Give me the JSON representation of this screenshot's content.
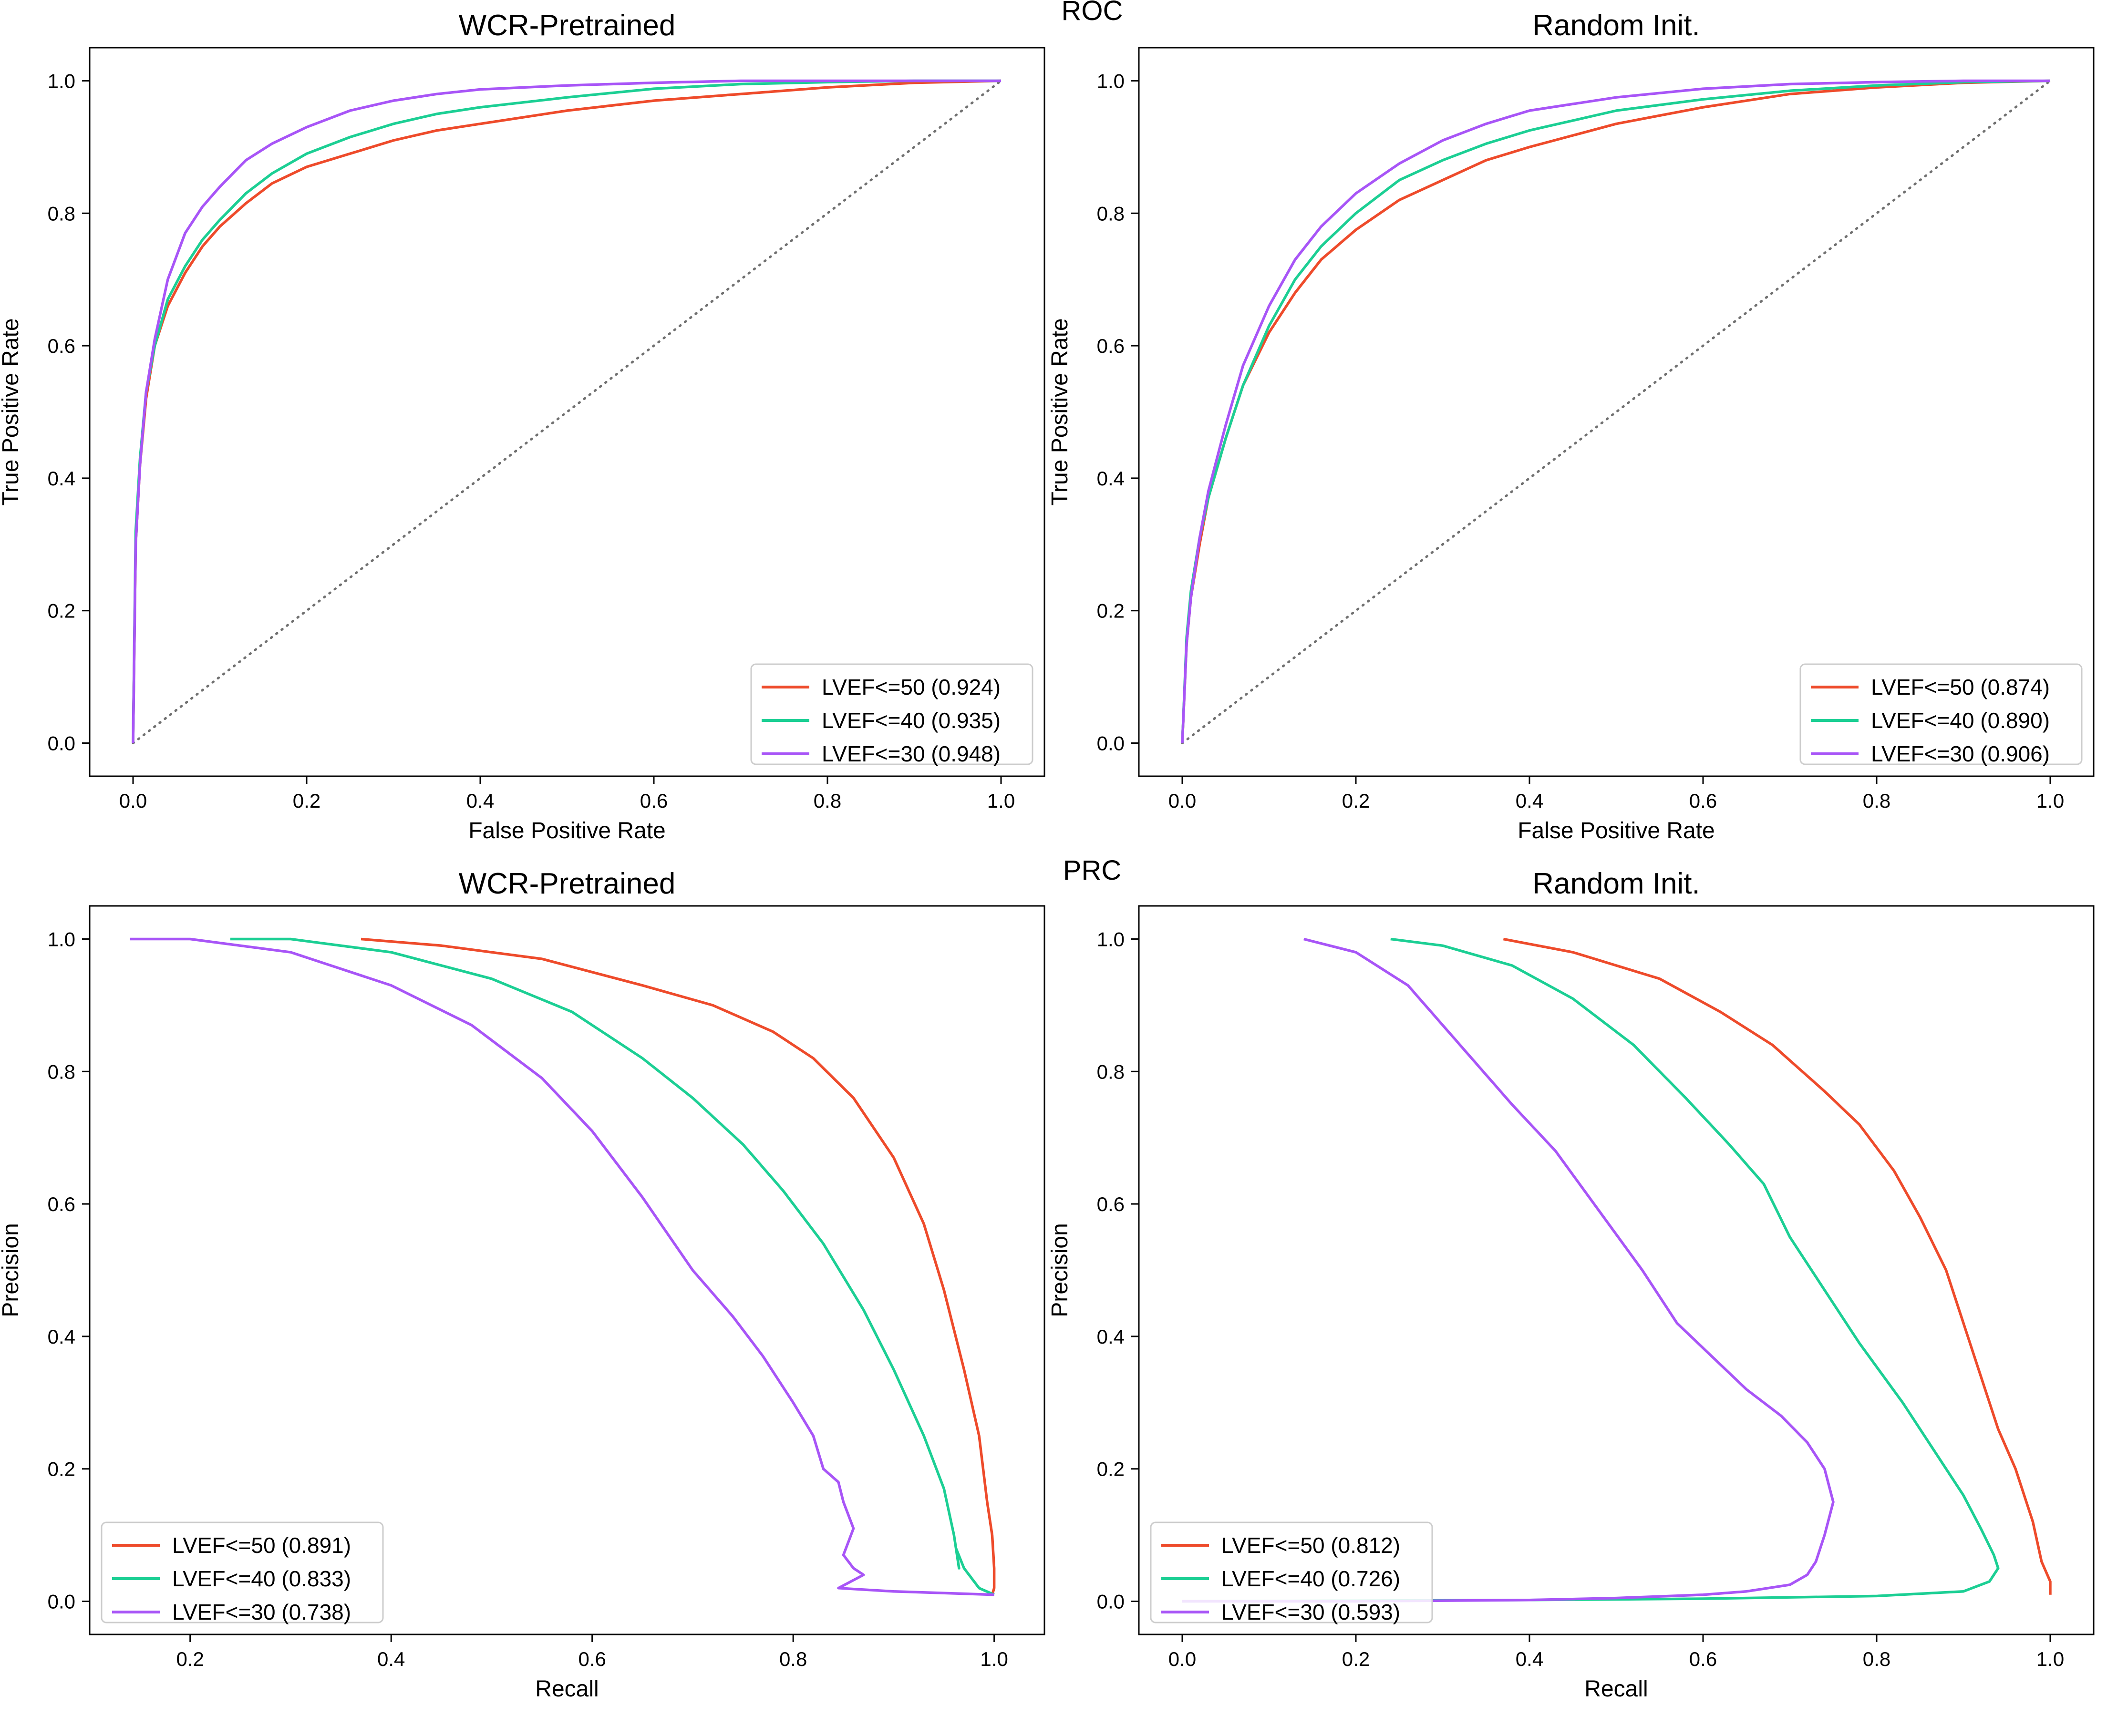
{
  "section_titles": [
    "ROC",
    "PRC"
  ],
  "colors": {
    "lvef50": "#ee4b2b",
    "lvef40": "#1ccf94",
    "lvef30": "#a855f7",
    "diagonal": "#707070",
    "axes": "#000000"
  },
  "chart_data": [
    {
      "type": "line",
      "section": "ROC",
      "title": "WCR-Pretrained",
      "xlabel": "False Positive Rate",
      "ylabel": "True Positive Rate",
      "xlim": [
        -0.05,
        1.05
      ],
      "ylim": [
        -0.05,
        1.05
      ],
      "xticks": [
        0.0,
        0.2,
        0.4,
        0.6,
        0.8,
        1.0
      ],
      "yticks": [
        0.0,
        0.2,
        0.4,
        0.6,
        0.8,
        1.0
      ],
      "xtick_labels": [
        "0.0",
        "0.2",
        "0.4",
        "0.6",
        "0.8",
        "1.0"
      ],
      "ytick_labels": [
        "0.0",
        "0.2",
        "0.4",
        "0.6",
        "0.8",
        "1.0"
      ],
      "legend_position": "lower-right",
      "diagonal": true,
      "series": [
        {
          "name": "LVEF<=50 (0.924)",
          "color": "#ee4b2b",
          "x": [
            0,
            0.003,
            0.008,
            0.015,
            0.025,
            0.04,
            0.06,
            0.08,
            0.1,
            0.13,
            0.16,
            0.2,
            0.25,
            0.3,
            0.35,
            0.4,
            0.5,
            0.6,
            0.7,
            0.8,
            0.9,
            1.0
          ],
          "y": [
            0,
            0.3,
            0.42,
            0.52,
            0.6,
            0.66,
            0.71,
            0.75,
            0.78,
            0.815,
            0.845,
            0.87,
            0.89,
            0.91,
            0.925,
            0.935,
            0.955,
            0.97,
            0.98,
            0.99,
            0.997,
            1.0
          ]
        },
        {
          "name": "LVEF<=40 (0.935)",
          "color": "#1ccf94",
          "x": [
            0,
            0.003,
            0.008,
            0.015,
            0.025,
            0.04,
            0.06,
            0.08,
            0.1,
            0.13,
            0.16,
            0.2,
            0.25,
            0.3,
            0.35,
            0.4,
            0.5,
            0.6,
            0.7,
            0.8,
            0.9,
            1.0
          ],
          "y": [
            0,
            0.32,
            0.43,
            0.53,
            0.6,
            0.67,
            0.72,
            0.76,
            0.79,
            0.83,
            0.86,
            0.89,
            0.915,
            0.935,
            0.95,
            0.96,
            0.975,
            0.988,
            0.995,
            0.998,
            1.0,
            1.0
          ]
        },
        {
          "name": "LVEF<=30 (0.948)",
          "color": "#a855f7",
          "x": [
            0,
            0.003,
            0.008,
            0.015,
            0.025,
            0.04,
            0.06,
            0.08,
            0.1,
            0.13,
            0.16,
            0.2,
            0.25,
            0.3,
            0.35,
            0.4,
            0.5,
            0.6,
            0.7,
            0.8,
            0.9,
            1.0
          ],
          "y": [
            0,
            0.3,
            0.42,
            0.53,
            0.61,
            0.7,
            0.77,
            0.81,
            0.84,
            0.88,
            0.905,
            0.93,
            0.955,
            0.97,
            0.98,
            0.987,
            0.993,
            0.997,
            1.0,
            1.0,
            1.0,
            1.0
          ]
        }
      ]
    },
    {
      "type": "line",
      "section": "ROC",
      "title": "Random Init.",
      "xlabel": "False Positive Rate",
      "ylabel": "True Positive Rate",
      "xlim": [
        -0.05,
        1.05
      ],
      "ylim": [
        -0.05,
        1.05
      ],
      "xticks": [
        0.0,
        0.2,
        0.4,
        0.6,
        0.8,
        1.0
      ],
      "yticks": [
        0.0,
        0.2,
        0.4,
        0.6,
        0.8,
        1.0
      ],
      "xtick_labels": [
        "0.0",
        "0.2",
        "0.4",
        "0.6",
        "0.8",
        "1.0"
      ],
      "ytick_labels": [
        "0.0",
        "0.2",
        "0.4",
        "0.6",
        "0.8",
        "1.0"
      ],
      "legend_position": "lower-right",
      "diagonal": true,
      "series": [
        {
          "name": "LVEF<=50 (0.874)",
          "color": "#ee4b2b",
          "x": [
            0,
            0.005,
            0.01,
            0.02,
            0.03,
            0.05,
            0.07,
            0.1,
            0.13,
            0.16,
            0.2,
            0.25,
            0.3,
            0.35,
            0.4,
            0.5,
            0.6,
            0.7,
            0.8,
            0.9,
            1.0
          ],
          "y": [
            0,
            0.15,
            0.22,
            0.3,
            0.37,
            0.46,
            0.54,
            0.62,
            0.68,
            0.73,
            0.775,
            0.82,
            0.85,
            0.88,
            0.9,
            0.935,
            0.96,
            0.98,
            0.99,
            0.997,
            1.0
          ]
        },
        {
          "name": "LVEF<=40 (0.890)",
          "color": "#1ccf94",
          "x": [
            0,
            0.005,
            0.01,
            0.02,
            0.03,
            0.05,
            0.07,
            0.1,
            0.13,
            0.16,
            0.2,
            0.25,
            0.3,
            0.35,
            0.4,
            0.5,
            0.6,
            0.7,
            0.8,
            0.9,
            1.0
          ],
          "y": [
            0,
            0.16,
            0.23,
            0.31,
            0.37,
            0.46,
            0.54,
            0.63,
            0.7,
            0.75,
            0.8,
            0.85,
            0.88,
            0.905,
            0.925,
            0.955,
            0.972,
            0.985,
            0.993,
            0.998,
            1.0
          ]
        },
        {
          "name": "LVEF<=30 (0.906)",
          "color": "#a855f7",
          "x": [
            0,
            0.005,
            0.01,
            0.02,
            0.03,
            0.05,
            0.07,
            0.1,
            0.13,
            0.16,
            0.2,
            0.25,
            0.3,
            0.35,
            0.4,
            0.5,
            0.6,
            0.7,
            0.8,
            0.9,
            1.0
          ],
          "y": [
            0,
            0.15,
            0.22,
            0.31,
            0.38,
            0.48,
            0.57,
            0.66,
            0.73,
            0.78,
            0.83,
            0.875,
            0.91,
            0.935,
            0.955,
            0.975,
            0.988,
            0.995,
            0.998,
            1.0,
            1.0
          ]
        }
      ]
    },
    {
      "type": "line",
      "section": "PRC",
      "title": "WCR-Pretrained",
      "xlabel": "Recall",
      "ylabel": "Precision",
      "xlim": [
        0.1,
        1.05
      ],
      "ylim": [
        -0.05,
        1.05
      ],
      "xticks": [
        0.2,
        0.4,
        0.6,
        0.8,
        1.0
      ],
      "yticks": [
        0.0,
        0.2,
        0.4,
        0.6,
        0.8,
        1.0
      ],
      "xtick_labels": [
        "0.2",
        "0.4",
        "0.6",
        "0.8",
        "1.0"
      ],
      "ytick_labels": [
        "0.0",
        "0.2",
        "0.4",
        "0.6",
        "0.8",
        "1.0"
      ],
      "legend_position": "lower-left",
      "diagonal": false,
      "series": [
        {
          "name": "LVEF<=50 (0.891)",
          "color": "#ee4b2b",
          "x": [
            0.37,
            0.45,
            0.55,
            0.65,
            0.72,
            0.78,
            0.82,
            0.86,
            0.9,
            0.93,
            0.95,
            0.97,
            0.985,
            0.993,
            0.998,
            1.0,
            1.0,
            0.998,
            1.0
          ],
          "y": [
            1.0,
            0.99,
            0.97,
            0.93,
            0.9,
            0.86,
            0.82,
            0.76,
            0.67,
            0.57,
            0.47,
            0.35,
            0.25,
            0.15,
            0.1,
            0.05,
            0.02,
            0.01,
            0.01
          ]
        },
        {
          "name": "LVEF<=40 (0.833)",
          "color": "#1ccf94",
          "x": [
            0.24,
            0.3,
            0.4,
            0.5,
            0.58,
            0.65,
            0.7,
            0.75,
            0.79,
            0.83,
            0.87,
            0.9,
            0.93,
            0.95,
            0.96,
            0.965,
            0.962,
            0.97,
            0.985,
            1.0
          ],
          "y": [
            1.0,
            1.0,
            0.98,
            0.94,
            0.89,
            0.82,
            0.76,
            0.69,
            0.62,
            0.54,
            0.44,
            0.35,
            0.25,
            0.17,
            0.1,
            0.05,
            0.08,
            0.05,
            0.02,
            0.01
          ]
        },
        {
          "name": "LVEF<=30 (0.738)",
          "color": "#a855f7",
          "x": [
            0.14,
            0.2,
            0.3,
            0.4,
            0.48,
            0.55,
            0.6,
            0.65,
            0.7,
            0.74,
            0.77,
            0.8,
            0.82,
            0.83,
            0.845,
            0.85,
            0.855,
            0.86,
            0.855,
            0.85,
            0.86,
            0.87,
            0.845,
            0.9,
            1.0
          ],
          "y": [
            1.0,
            1.0,
            0.98,
            0.93,
            0.87,
            0.79,
            0.71,
            0.61,
            0.5,
            0.43,
            0.37,
            0.3,
            0.25,
            0.2,
            0.18,
            0.15,
            0.13,
            0.11,
            0.09,
            0.07,
            0.05,
            0.04,
            0.02,
            0.015,
            0.01
          ]
        }
      ]
    },
    {
      "type": "line",
      "section": "PRC",
      "title": "Random Init.",
      "xlabel": "Recall",
      "ylabel": "Precision",
      "xlim": [
        -0.05,
        1.05
      ],
      "ylim": [
        -0.05,
        1.05
      ],
      "xticks": [
        0.0,
        0.2,
        0.4,
        0.6,
        0.8,
        1.0
      ],
      "yticks": [
        0.0,
        0.2,
        0.4,
        0.6,
        0.8,
        1.0
      ],
      "xtick_labels": [
        "0.0",
        "0.2",
        "0.4",
        "0.6",
        "0.8",
        "1.0"
      ],
      "ytick_labels": [
        "0.0",
        "0.2",
        "0.4",
        "0.6",
        "0.8",
        "1.0"
      ],
      "legend_position": "lower-left",
      "diagonal": false,
      "series": [
        {
          "name": "LVEF<=50 (0.812)",
          "color": "#ee4b2b",
          "x": [
            0.37,
            0.45,
            0.55,
            0.62,
            0.68,
            0.74,
            0.78,
            0.82,
            0.85,
            0.88,
            0.9,
            0.92,
            0.94,
            0.96,
            0.98,
            0.99,
            1.0,
            1.0
          ],
          "y": [
            1.0,
            0.98,
            0.94,
            0.89,
            0.84,
            0.77,
            0.72,
            0.65,
            0.58,
            0.5,
            0.42,
            0.34,
            0.26,
            0.2,
            0.12,
            0.06,
            0.03,
            0.01
          ]
        },
        {
          "name": "LVEF<=40 (0.726)",
          "color": "#1ccf94",
          "x": [
            0.24,
            0.3,
            0.38,
            0.45,
            0.52,
            0.58,
            0.63,
            0.67,
            0.7,
            0.74,
            0.78,
            0.83,
            0.87,
            0.9,
            0.92,
            0.935,
            0.94,
            0.93,
            0.9,
            0.8,
            0.6,
            0.4,
            0.2,
            0.0
          ],
          "y": [
            1.0,
            0.99,
            0.96,
            0.91,
            0.84,
            0.76,
            0.69,
            0.63,
            0.55,
            0.47,
            0.39,
            0.3,
            0.22,
            0.16,
            0.11,
            0.07,
            0.05,
            0.03,
            0.015,
            0.008,
            0.004,
            0.002,
            0.001,
            0.0
          ]
        },
        {
          "name": "LVEF<=30 (0.593)",
          "color": "#a855f7",
          "x": [
            0.14,
            0.2,
            0.26,
            0.32,
            0.38,
            0.43,
            0.48,
            0.53,
            0.57,
            0.61,
            0.65,
            0.69,
            0.72,
            0.74,
            0.75,
            0.74,
            0.73,
            0.72,
            0.7,
            0.65,
            0.6,
            0.5,
            0.4,
            0.2,
            0.0
          ],
          "y": [
            1.0,
            0.98,
            0.93,
            0.84,
            0.75,
            0.68,
            0.59,
            0.5,
            0.42,
            0.37,
            0.32,
            0.28,
            0.24,
            0.2,
            0.15,
            0.1,
            0.06,
            0.04,
            0.025,
            0.015,
            0.01,
            0.005,
            0.002,
            0.0,
            0.0
          ]
        }
      ]
    }
  ]
}
